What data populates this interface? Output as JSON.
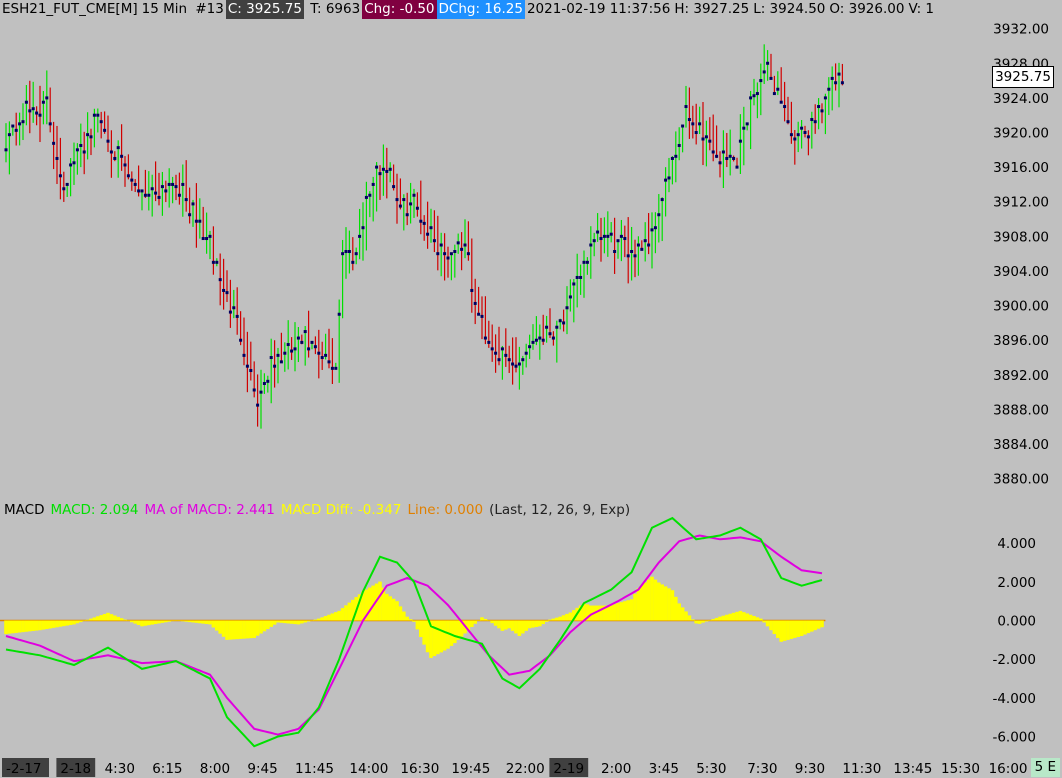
{
  "header": {
    "symbol": "ESH21_FUT_CME[M]",
    "interval": "15 Min",
    "bar_index": "#13",
    "close": "C: 3925.75",
    "trades": "T: 6963",
    "chg": "Chg: -0.50",
    "dchg": "DChg: 16.25",
    "datetime": "2021-02-19 11:37:56",
    "high": "H: 3927.25",
    "low": "L: 3924.50",
    "open": "O: 3926.00",
    "volume": "V: 1"
  },
  "current_price": "3925.75",
  "macd_header": {
    "name": "MACD",
    "macd": "MACD: 2.094",
    "ma": "MA of MACD: 2.441",
    "diff": "MACD Diff: -0.347",
    "line": "Line: 0.000",
    "params": "(Last, 12, 26, 9, Exp)"
  },
  "end_badge": "5 E",
  "colors": {
    "up": "#00e000",
    "down": "#d00000",
    "close_tick": "#000060",
    "macd": "#00e000",
    "ma": "#e000e0",
    "diff": "#ffff00",
    "line": "#e08000",
    "bg": "#c0c0c0"
  },
  "chart_data": [
    {
      "type": "ohlc",
      "title": "ESH21_FUT_CME[M] 15 Min",
      "ylim": [
        3878,
        3933
      ],
      "y_ticks": [
        "3932.00",
        "3928.00",
        "3924.00",
        "3920.00",
        "3916.00",
        "3912.00",
        "3908.00",
        "3904.00",
        "3900.00",
        "3896.00",
        "3892.00",
        "3888.00",
        "3884.00",
        "3880.00"
      ],
      "x_ticks": [
        {
          "label": "-2-17",
          "bar": 0,
          "highlight": true
        },
        {
          "label": "2-18",
          "bar": 16,
          "highlight": true
        },
        {
          "label": "4:30",
          "bar": 29,
          "highlight": false
        },
        {
          "label": "6:15",
          "bar": 43,
          "highlight": false
        },
        {
          "label": "8:00",
          "bar": 57,
          "highlight": false
        },
        {
          "label": "9:45",
          "bar": 71,
          "highlight": false
        },
        {
          "label": "11:45",
          "bar": 85,
          "highlight": false
        },
        {
          "label": "14:00",
          "bar": 101,
          "highlight": false
        },
        {
          "label": "16:30",
          "bar": 116,
          "highlight": false
        },
        {
          "label": "19:45",
          "bar": 131,
          "highlight": false
        },
        {
          "label": "22:00",
          "bar": 147,
          "highlight": false
        },
        {
          "label": "2-19",
          "bar": 161,
          "highlight": true
        },
        {
          "label": "2:00",
          "bar": 175,
          "highlight": false
        },
        {
          "label": "3:45",
          "bar": 189,
          "highlight": false
        },
        {
          "label": "5:30",
          "bar": 203,
          "highlight": false
        },
        {
          "label": "7:30",
          "bar": 218,
          "highlight": false
        },
        {
          "label": "9:30",
          "bar": 232,
          "highlight": false
        },
        {
          "label": "11:30",
          "bar": 246,
          "highlight": false
        },
        {
          "label": "13:45",
          "bar": 261,
          "highlight": false
        },
        {
          "label": "15:30",
          "bar": 275,
          "highlight": false
        },
        {
          "label": "16:00",
          "bar": 289,
          "highlight": false
        }
      ],
      "close_anchors": [
        [
          0,
          3919
        ],
        [
          6,
          3922.5
        ],
        [
          12,
          3923
        ],
        [
          17,
          3914
        ],
        [
          22,
          3918
        ],
        [
          27,
          3922
        ],
        [
          32,
          3918
        ],
        [
          37,
          3914
        ],
        [
          42,
          3913
        ],
        [
          50,
          3914.5
        ],
        [
          56,
          3910
        ],
        [
          60,
          3907
        ],
        [
          64,
          3902
        ],
        [
          69,
          3897
        ],
        [
          74,
          3889
        ],
        [
          78,
          3893
        ],
        [
          83,
          3894.5
        ],
        [
          88,
          3896
        ],
        [
          92,
          3894
        ],
        [
          97,
          3893
        ],
        [
          99,
          3906
        ],
        [
          103,
          3906
        ],
        [
          106,
          3912
        ],
        [
          110,
          3916
        ],
        [
          113,
          3916
        ],
        [
          116,
          3911
        ],
        [
          120,
          3912
        ],
        [
          124,
          3909
        ],
        [
          127,
          3907
        ],
        [
          130,
          3906
        ],
        [
          135,
          3907.5
        ],
        [
          138,
          3900
        ],
        [
          142,
          3896
        ],
        [
          146,
          3894
        ],
        [
          150,
          3893
        ],
        [
          156,
          3896.5
        ],
        [
          160,
          3897
        ],
        [
          165,
          3899
        ],
        [
          170,
          3905
        ],
        [
          175,
          3908
        ],
        [
          180,
          3907
        ],
        [
          184,
          3906.5
        ],
        [
          190,
          3908
        ],
        [
          194,
          3914
        ],
        [
          197,
          3917
        ],
        [
          200,
          3922
        ],
        [
          205,
          3920
        ],
        [
          210,
          3917
        ],
        [
          215,
          3917
        ],
        [
          220,
          3925
        ],
        [
          224,
          3927
        ],
        [
          229,
          3923
        ],
        [
          232,
          3918.5
        ],
        [
          237,
          3921
        ],
        [
          240,
          3923.5
        ],
        [
          244,
          3926
        ],
        [
          246,
          3925.75
        ]
      ],
      "noise_seed": 42
    },
    {
      "type": "macd",
      "ylim": [
        -6.8,
        5.2
      ],
      "y_ticks": [
        "4.000",
        "2.000",
        "0.000",
        "-2.000",
        "-4.000",
        "-6.000"
      ],
      "macd_anchors": [
        [
          0,
          -1.5
        ],
        [
          10,
          -1.8
        ],
        [
          20,
          -2.3
        ],
        [
          30,
          -1.4
        ],
        [
          40,
          -2.5
        ],
        [
          50,
          -2.1
        ],
        [
          60,
          -3.0
        ],
        [
          65,
          -5.0
        ],
        [
          73,
          -6.5
        ],
        [
          80,
          -6.0
        ],
        [
          86,
          -5.8
        ],
        [
          92,
          -4.5
        ],
        [
          98,
          -2.0
        ],
        [
          105,
          1.5
        ],
        [
          110,
          3.3
        ],
        [
          115,
          3.0
        ],
        [
          120,
          2.0
        ],
        [
          125,
          -0.3
        ],
        [
          132,
          -0.8
        ],
        [
          140,
          -1.2
        ],
        [
          146,
          -3.0
        ],
        [
          151,
          -3.5
        ],
        [
          157,
          -2.5
        ],
        [
          163,
          -1.0
        ],
        [
          170,
          0.9
        ],
        [
          178,
          1.6
        ],
        [
          184,
          2.5
        ],
        [
          190,
          4.8
        ],
        [
          196,
          5.3
        ],
        [
          203,
          4.2
        ],
        [
          210,
          4.4
        ],
        [
          216,
          4.8
        ],
        [
          222,
          4.2
        ],
        [
          228,
          2.2
        ],
        [
          234,
          1.8
        ],
        [
          240,
          2.094
        ]
      ],
      "ma_anchors": [
        [
          0,
          -0.8
        ],
        [
          10,
          -1.3
        ],
        [
          20,
          -2.1
        ],
        [
          30,
          -1.8
        ],
        [
          40,
          -2.2
        ],
        [
          50,
          -2.1
        ],
        [
          60,
          -2.8
        ],
        [
          65,
          -4.0
        ],
        [
          73,
          -5.6
        ],
        [
          80,
          -5.9
        ],
        [
          86,
          -5.6
        ],
        [
          92,
          -4.6
        ],
        [
          98,
          -2.5
        ],
        [
          105,
          0.0
        ],
        [
          112,
          1.8
        ],
        [
          118,
          2.2
        ],
        [
          124,
          1.8
        ],
        [
          130,
          0.8
        ],
        [
          136,
          -0.5
        ],
        [
          142,
          -1.8
        ],
        [
          148,
          -2.8
        ],
        [
          154,
          -2.6
        ],
        [
          160,
          -1.8
        ],
        [
          166,
          -0.6
        ],
        [
          172,
          0.3
        ],
        [
          180,
          1.0
        ],
        [
          186,
          1.6
        ],
        [
          192,
          3.0
        ],
        [
          198,
          4.1
        ],
        [
          204,
          4.4
        ],
        [
          210,
          4.2
        ],
        [
          216,
          4.3
        ],
        [
          222,
          4.1
        ],
        [
          228,
          3.3
        ],
        [
          234,
          2.6
        ],
        [
          240,
          2.441
        ]
      ],
      "macd_final": "2.094",
      "ma_final": "2.441",
      "diff_final": "-0.347",
      "line_value": "0.000"
    }
  ]
}
